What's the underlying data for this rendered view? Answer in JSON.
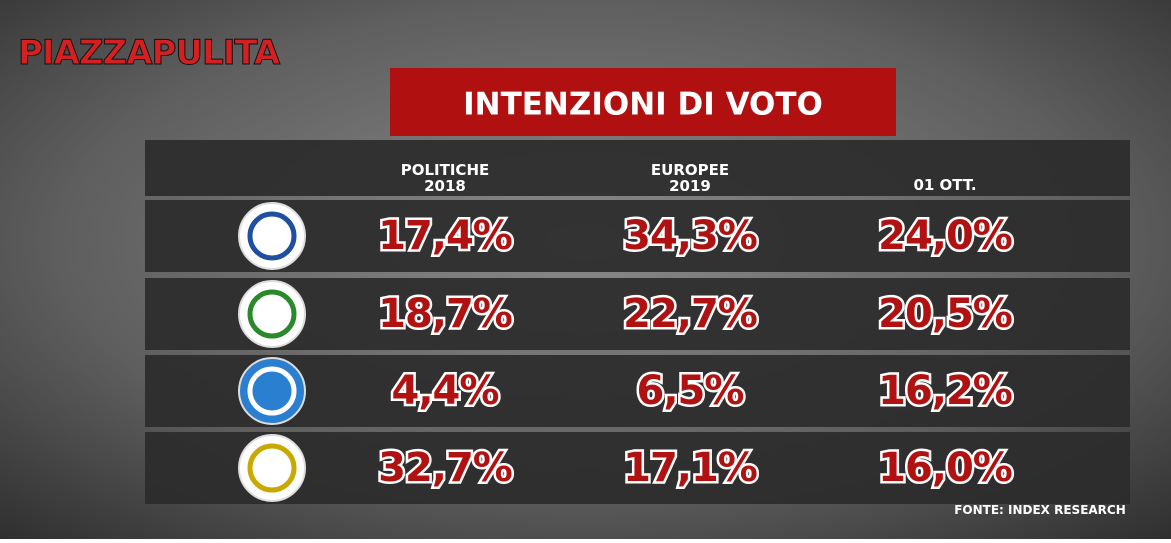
{
  "brand": "PIAZZAPULITA",
  "title": "INTENZIONI DI VOTO",
  "table": {
    "columns": [
      [
        "POLITICHE",
        "2018"
      ],
      [
        "EUROPEE",
        "2019"
      ],
      [
        "01 OTT."
      ]
    ],
    "rows": [
      [
        "17,4%",
        "34,3%",
        "24,0%"
      ],
      [
        "18,7%",
        "22,7%",
        "20,5%"
      ],
      [
        "4,4%",
        "6,5%",
        "16,2%"
      ],
      [
        "32,7%",
        "17,1%",
        "16,0%"
      ]
    ]
  },
  "source": "FONTE: INDEX RESEARCH"
}
